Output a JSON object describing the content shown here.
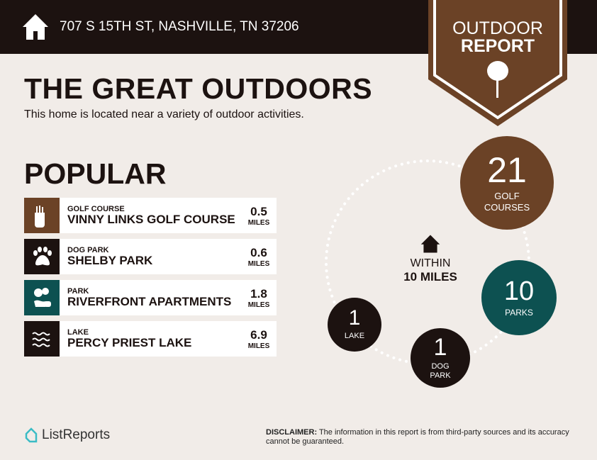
{
  "header": {
    "address": "707 S 15TH ST, NASHVILLE, TN 37206",
    "badge_line1": "OUTDOOR",
    "badge_line2": "REPORT"
  },
  "title": "THE GREAT OUTDOORS",
  "subtitle": "This home is located near a variety of outdoor activities.",
  "popular": {
    "heading": "POPULAR",
    "items": [
      {
        "category": "GOLF COURSE",
        "name": "VINNY LINKS GOLF COURSE",
        "distance": "0.5",
        "unit": "MILES",
        "icon": "golf-bag-icon",
        "color": "#6b4226"
      },
      {
        "category": "DOG PARK",
        "name": "SHELBY PARK",
        "distance": "0.6",
        "unit": "MILES",
        "icon": "paw-icon",
        "color": "#1c1210"
      },
      {
        "category": "PARK",
        "name": "RIVERFRONT APARTMENTS",
        "distance": "1.8",
        "unit": "MILES",
        "icon": "park-icon",
        "color": "#0d5151"
      },
      {
        "category": "LAKE",
        "name": "PERCY PRIEST LAKE",
        "distance": "6.9",
        "unit": "MILES",
        "icon": "waves-icon",
        "color": "#1c1210"
      }
    ]
  },
  "within": {
    "line1": "WITHIN",
    "line2": "10 MILES"
  },
  "counts": [
    {
      "count": "21",
      "label": "GOLF COURSES",
      "color": "#6b4226"
    },
    {
      "count": "10",
      "label": "PARKS",
      "color": "#0d5151"
    },
    {
      "count": "1",
      "label": "DOG PARK",
      "color": "#1c1210"
    },
    {
      "count": "1",
      "label": "LAKE",
      "color": "#1c1210"
    }
  ],
  "footer": {
    "logo": "ListReports",
    "disclaimer_label": "DISCLAIMER:",
    "disclaimer": " The information in this report is from third-party sources and its accuracy cannot be guaranteed."
  }
}
